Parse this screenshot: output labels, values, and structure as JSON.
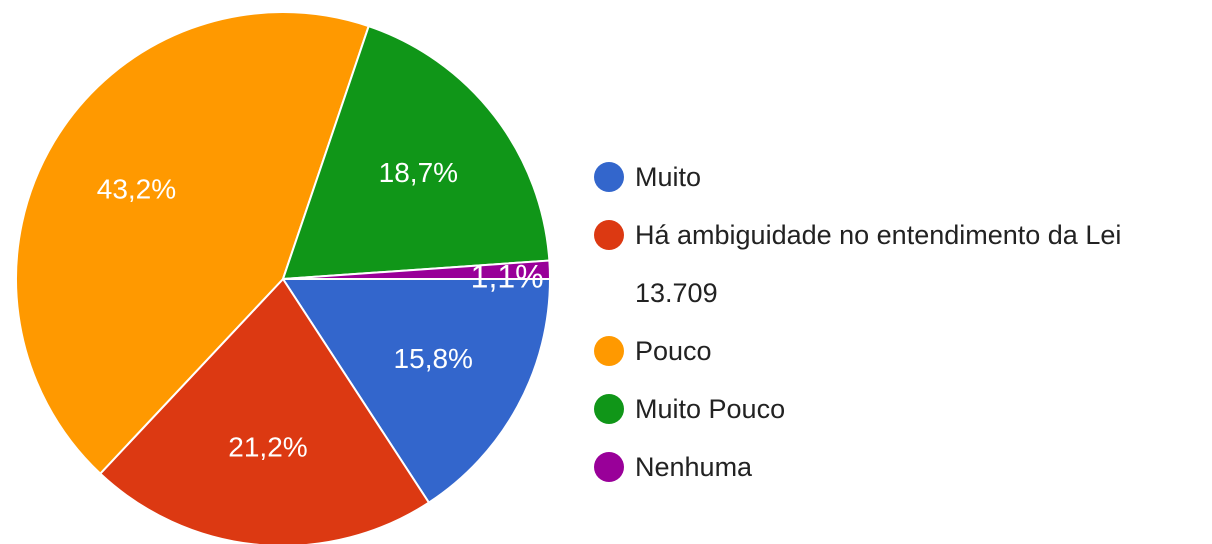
{
  "chart_data": {
    "type": "pie",
    "categories": [
      "Muito",
      "Há ambiguidade no entendimento da Lei 13.709",
      "Pouco",
      "Muito Pouco",
      "Nenhuma"
    ],
    "values": [
      15.8,
      21.2,
      43.2,
      18.7,
      1.1
    ],
    "value_labels": [
      "15,8%",
      "21,2%",
      "43,2%",
      "18,7%",
      "1,1%"
    ],
    "colors": [
      "#3366cc",
      "#dc3912",
      "#ff9900",
      "#109618",
      "#990099"
    ],
    "legend": "right"
  }
}
